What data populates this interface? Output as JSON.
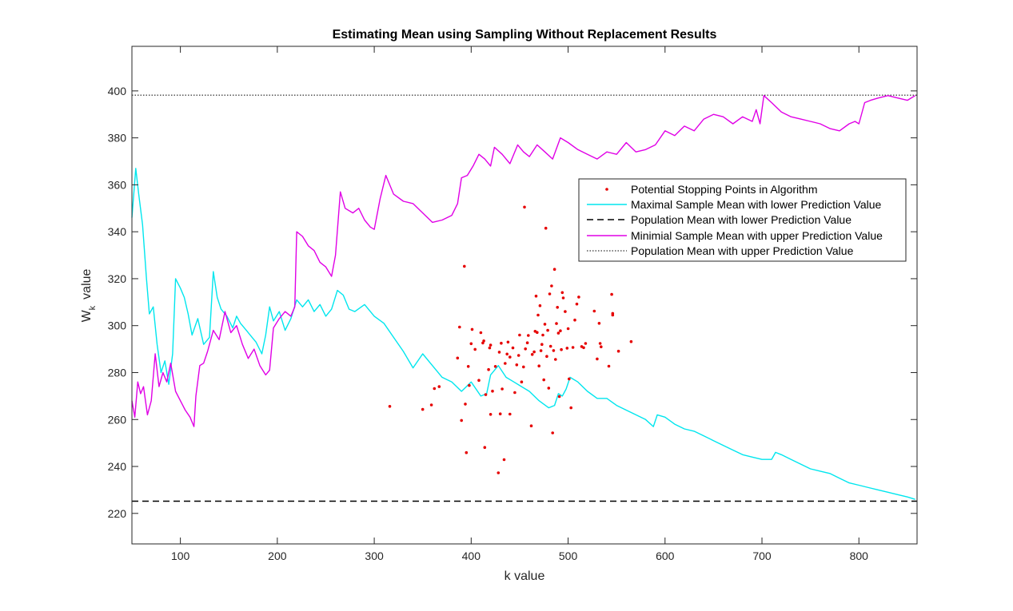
{
  "colors": {
    "scatter": "#e60000",
    "max_mean": "#00e6ee",
    "min_mean": "#e000e6",
    "reference": "#000000",
    "axis": "#262626"
  },
  "chart_data": {
    "type": "line",
    "title": "Estimating Mean using Sampling Without Replacement Results",
    "xlabel": "k value",
    "ylabel_main": "W",
    "ylabel_sub": "k",
    "ylabel_rest": "value",
    "xlim": [
      50,
      860
    ],
    "ylim": [
      207,
      419
    ],
    "xticks": [
      100,
      200,
      300,
      400,
      500,
      600,
      700,
      800
    ],
    "yticks": [
      220,
      240,
      260,
      280,
      300,
      320,
      340,
      360,
      380,
      400
    ],
    "grid": false,
    "legend_location": "northeast-inner",
    "legend": [
      "Potential Stopping Points in Algorithm",
      "Maximal Sample Mean with lower Prediction Value",
      "Population Mean with lower Prediction Value",
      "Minimial Sample Mean with upper Prediction Value",
      "Population Mean with upper Prediction Value"
    ],
    "reference_lines": {
      "lower": 225.2,
      "upper": 398.2
    },
    "series": [
      {
        "name": "Maximal Sample Mean with lower Prediction Value",
        "style": "solid",
        "x": [
          50,
          54,
          57,
          61,
          65,
          68,
          72,
          76,
          80,
          84,
          88,
          92,
          95,
          100,
          104,
          108,
          112,
          118,
          124,
          130,
          134,
          138,
          142,
          148,
          154,
          158,
          162,
          168,
          174,
          178,
          184,
          188,
          192,
          196,
          202,
          208,
          214,
          220,
          226,
          232,
          238,
          244,
          250,
          256,
          262,
          268,
          274,
          280,
          290,
          300,
          310,
          320,
          330,
          340,
          350,
          360,
          370,
          380,
          390,
          400,
          410,
          416,
          420,
          428,
          436,
          444,
          452,
          460,
          470,
          480,
          486,
          490,
          494,
          498,
          502,
          510,
          520,
          530,
          540,
          550,
          560,
          570,
          580,
          588,
          592,
          600,
          610,
          620,
          630,
          640,
          650,
          660,
          670,
          680,
          690,
          700,
          710,
          714,
          720,
          730,
          740,
          750,
          760,
          770,
          780,
          790,
          800,
          810,
          820,
          830,
          840,
          850,
          858
        ],
        "y": [
          346,
          367,
          356,
          343,
          320,
          305,
          308,
          292,
          280,
          285,
          275,
          288,
          320,
          316,
          312,
          305,
          296,
          303,
          292,
          295,
          323,
          312,
          307,
          304,
          299,
          304,
          301,
          298,
          295,
          293,
          288,
          296,
          308,
          302,
          306,
          298,
          303,
          311,
          308,
          311,
          306,
          309,
          304,
          307,
          315,
          313,
          307,
          306,
          309,
          304,
          301,
          295,
          289,
          282,
          288,
          283,
          278,
          276,
          272,
          276,
          270,
          271,
          279,
          283,
          278,
          276,
          274,
          272,
          268,
          265,
          266,
          271,
          270,
          273,
          278,
          276,
          272,
          269,
          269,
          266,
          264,
          262,
          260,
          257,
          262,
          261,
          258,
          256,
          255,
          253,
          251,
          249,
          247,
          245,
          244,
          243,
          243,
          246,
          245,
          243,
          241,
          239,
          238,
          237,
          235,
          233,
          232,
          231,
          230,
          229,
          228,
          227,
          226
        ]
      },
      {
        "name": "Minimial Sample Mean with upper Prediction Value",
        "style": "solid",
        "x": [
          50,
          53,
          56,
          59,
          62,
          66,
          70,
          74,
          78,
          82,
          86,
          90,
          95,
          100,
          105,
          110,
          114,
          116,
          120,
          124,
          128,
          134,
          140,
          146,
          152,
          158,
          164,
          170,
          176,
          182,
          188,
          192,
          196,
          202,
          208,
          214,
          218,
          220,
          226,
          232,
          238,
          244,
          250,
          256,
          260,
          265,
          270,
          278,
          284,
          290,
          296,
          300,
          306,
          312,
          320,
          330,
          340,
          350,
          360,
          370,
          380,
          386,
          390,
          396,
          402,
          408,
          414,
          420,
          424,
          432,
          440,
          448,
          454,
          460,
          468,
          476,
          484,
          492,
          500,
          510,
          520,
          530,
          540,
          550,
          560,
          570,
          580,
          590,
          600,
          610,
          620,
          630,
          640,
          650,
          660,
          670,
          680,
          690,
          694,
          698,
          702,
          710,
          720,
          730,
          740,
          750,
          760,
          770,
          780,
          790,
          796,
          800,
          806,
          812,
          820,
          830,
          840,
          850,
          858
        ],
        "y": [
          268,
          261,
          276,
          271,
          274,
          262,
          268,
          288,
          274,
          280,
          276,
          284,
          272,
          268,
          264,
          261,
          257,
          270,
          283,
          284,
          289,
          298,
          294,
          306,
          297,
          300,
          292,
          286,
          290,
          283,
          279,
          281,
          299,
          303,
          306,
          304,
          308,
          340,
          338,
          334,
          332,
          327,
          325,
          321,
          330,
          357,
          350,
          348,
          350,
          345,
          342,
          341,
          354,
          364,
          356,
          353,
          352,
          348,
          344,
          345,
          347,
          352,
          363,
          364,
          368,
          373,
          371,
          368,
          376,
          373,
          369,
          377,
          374,
          372,
          377,
          374,
          371,
          380,
          378,
          375,
          373,
          371,
          374,
          373,
          378,
          374,
          375,
          377,
          383,
          381,
          385,
          383,
          388,
          390,
          389,
          386,
          389,
          387,
          392,
          386,
          398,
          395,
          391,
          389,
          388,
          387,
          386,
          384,
          383,
          386,
          387,
          386,
          395,
          396,
          397,
          398,
          397,
          396,
          398
        ]
      }
    ],
    "scatter": {
      "name": "Potential Stopping Points in Algorithm",
      "points": [
        [
          316,
          265.6
        ],
        [
          350,
          264.3
        ],
        [
          359,
          266.2
        ],
        [
          362,
          273.2
        ],
        [
          367,
          274
        ],
        [
          386,
          286.2
        ],
        [
          388,
          299.4
        ],
        [
          390,
          259.6
        ],
        [
          393,
          325.3
        ],
        [
          394,
          266.6
        ],
        [
          395,
          245.9
        ],
        [
          397,
          282.6
        ],
        [
          398,
          274.5
        ],
        [
          400,
          292.3
        ],
        [
          401,
          298.4
        ],
        [
          404,
          289.9
        ],
        [
          408,
          276.7
        ],
        [
          410,
          297
        ],
        [
          412,
          292.6
        ],
        [
          413,
          293.5
        ],
        [
          414,
          248.1
        ],
        [
          415,
          270.6
        ],
        [
          418,
          281.3
        ],
        [
          419,
          290.5
        ],
        [
          420,
          291.7
        ],
        [
          420,
          262.2
        ],
        [
          422,
          272.1
        ],
        [
          425,
          282.6
        ],
        [
          428,
          237.3
        ],
        [
          429,
          288.7
        ],
        [
          430,
          262.4
        ],
        [
          431,
          292.5
        ],
        [
          432,
          273
        ],
        [
          434,
          242.9
        ],
        [
          435,
          283.9
        ],
        [
          437,
          287.9
        ],
        [
          438,
          293
        ],
        [
          440,
          286.6
        ],
        [
          440,
          262.3
        ],
        [
          443,
          290.5
        ],
        [
          445,
          271.5
        ],
        [
          447,
          283.3
        ],
        [
          449,
          287.3
        ],
        [
          450,
          296
        ],
        [
          452,
          276
        ],
        [
          454,
          282.4
        ],
        [
          455,
          350.5
        ],
        [
          456,
          290.1
        ],
        [
          458,
          292.7
        ],
        [
          459,
          295.8
        ],
        [
          462,
          257.3
        ],
        [
          463,
          287.7
        ],
        [
          465,
          288.8
        ],
        [
          466,
          297.6
        ],
        [
          467,
          312.6
        ],
        [
          468,
          297.1
        ],
        [
          469,
          304.5
        ],
        [
          470,
          282.8
        ],
        [
          471,
          308.5
        ],
        [
          472,
          289.3
        ],
        [
          473,
          292
        ],
        [
          474,
          296
        ],
        [
          475,
          276.9
        ],
        [
          476,
          300.6
        ],
        [
          477,
          341.5
        ],
        [
          478,
          286.9
        ],
        [
          479,
          298
        ],
        [
          480,
          273.4
        ],
        [
          481,
          313.5
        ],
        [
          482,
          291.2
        ],
        [
          483,
          316.9
        ],
        [
          484,
          254.3
        ],
        [
          485,
          289.4
        ],
        [
          486,
          324
        ],
        [
          487,
          285.6
        ],
        [
          488,
          300.9
        ],
        [
          489,
          307.8
        ],
        [
          490,
          296.8
        ],
        [
          491,
          269.8
        ],
        [
          492,
          297.8
        ],
        [
          493,
          289.8
        ],
        [
          494,
          314.1
        ],
        [
          495,
          311.8
        ],
        [
          497,
          306
        ],
        [
          499,
          290.4
        ],
        [
          500,
          298.7
        ],
        [
          501,
          277.3
        ],
        [
          503,
          265
        ],
        [
          505,
          290.7
        ],
        [
          507,
          302.4
        ],
        [
          509,
          309.2
        ],
        [
          511,
          312.2
        ],
        [
          514,
          291.1
        ],
        [
          516,
          290.6
        ],
        [
          518,
          292.4
        ],
        [
          527,
          306.2
        ],
        [
          530,
          285.8
        ],
        [
          532,
          301
        ],
        [
          533,
          292.4
        ],
        [
          534,
          291
        ],
        [
          542,
          282.7
        ],
        [
          545,
          313.3
        ],
        [
          546,
          304.5
        ],
        [
          546,
          305.2
        ],
        [
          552,
          289.1
        ],
        [
          565,
          293.2
        ]
      ]
    }
  }
}
